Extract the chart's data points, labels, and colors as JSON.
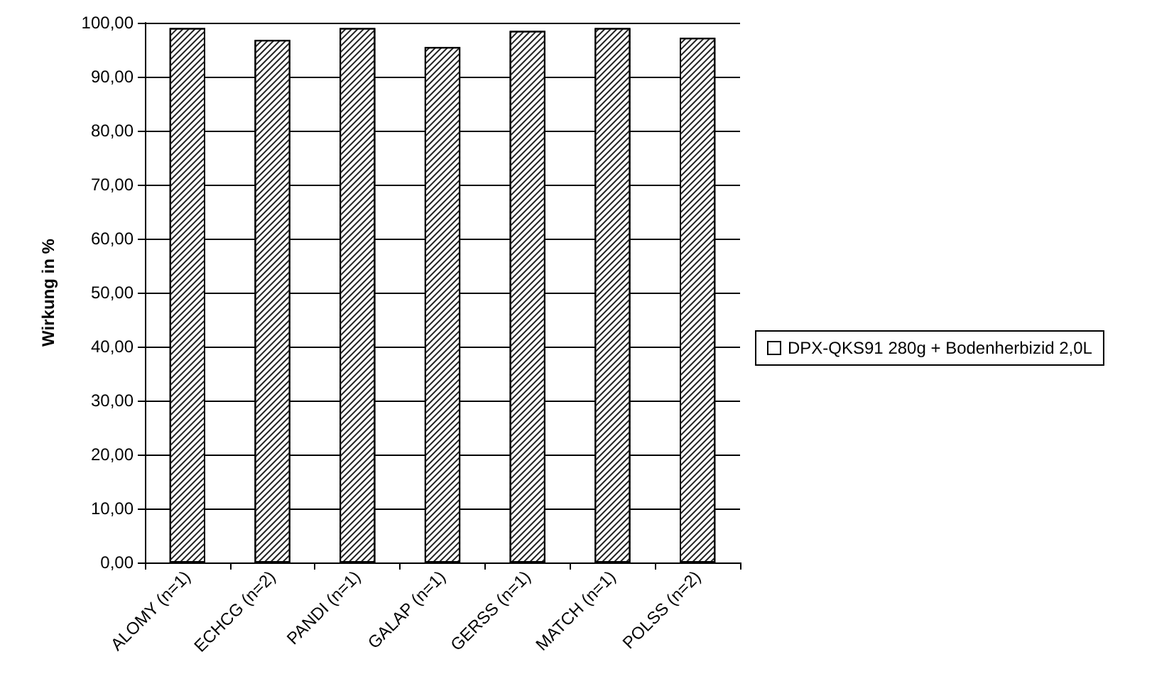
{
  "chart_data": {
    "type": "bar",
    "ylabel": "Wirkung in %",
    "categories": [
      "ALOMY (n=1)",
      "ECHCG (n=2)",
      "PANDI (n=1)",
      "GALAP (n=1)",
      "GERSS (n=1)",
      "MATCH (n=1)",
      "POLSS (n=2)"
    ],
    "series": [
      {
        "name": "DPX-QKS91 280g + Bodenherbizid 2,0L",
        "color": "#ffffff",
        "values": [
          99.0,
          96.8,
          99.0,
          95.5,
          98.5,
          99.0,
          97.2
        ]
      }
    ],
    "ylim": [
      0,
      100
    ],
    "yticks": [
      {
        "value": 0,
        "label": "0,00"
      },
      {
        "value": 10,
        "label": "10,00"
      },
      {
        "value": 20,
        "label": "20,00"
      },
      {
        "value": 30,
        "label": "30,00"
      },
      {
        "value": 40,
        "label": "40,00"
      },
      {
        "value": 50,
        "label": "50,00"
      },
      {
        "value": 60,
        "label": "60,00"
      },
      {
        "value": 70,
        "label": "70,00"
      },
      {
        "value": 80,
        "label": "80,00"
      },
      {
        "value": 90,
        "label": "90,00"
      },
      {
        "value": 100,
        "label": "100,00"
      }
    ],
    "grid": "y",
    "legend": "right"
  }
}
